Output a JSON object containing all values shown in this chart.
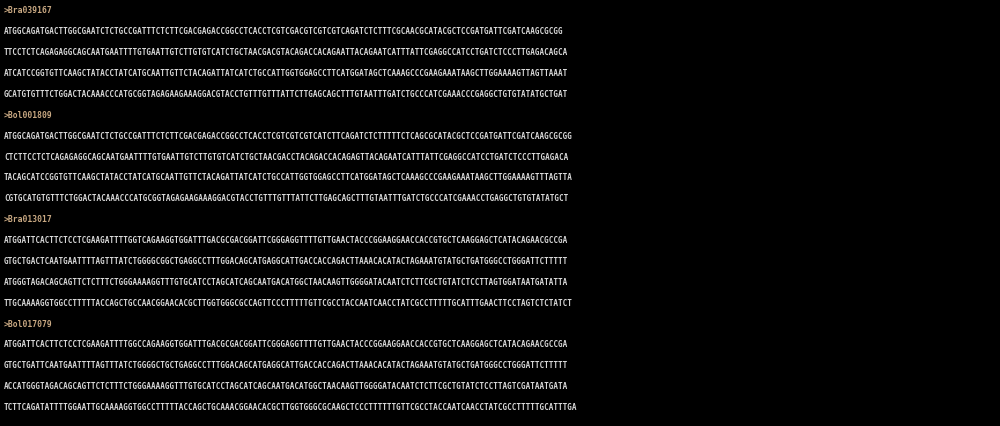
{
  "bg_color": "#000000",
  "header_color": "#c8a882",
  "seq_color": "#d8d8d8",
  "font_family": "monospace",
  "font_size": 5.5,
  "header_font_size": 5.8,
  "figsize": [
    10.0,
    4.26
  ],
  "dpi": 100,
  "sections": [
    {
      "header": ">Bra039167",
      "lines": [
        "ATGGCAGATGACTTGGCGAATCTCTGCCGATTTCTCTTCGACGAGACCGGCCTCACCTCGTCGACGTCGTCGTCAGATCTCTTTCGCAACGCATACGCTCCGATGATTCGATCAAGCGCGG",
        "TTCCTCTCAGAGAGGCAGCAATGAATTTTGTGAATTGTCTTGTGTCATCTGCTAACGACGTACAGACCACAGAATTACAGAATCATTTATTCGAGGCCATCCTGATCTCCCTTGAGACAGCA",
        "ATCATCCGGTGTTCAAGCTATACCTATCATGCAATTGTTCTACAGATTATCATCTGCCATTGGTGGAGCCTTCATGGATAGCTCAAAGCCCGAAGAAATAAGCTTGGAAAAGTTAGTTAAAT",
        "GCATGTGTTTCTGGACTACAAACCCATGCGGTAGAGAAGAAAGGACGTACCTGTTTGTTTATTCTTGAGCAGCTTTGTAATTTGATCTGCCCATCGAAACCCGAGGCTGTGTATATGCTGAT"
      ]
    },
    {
      "header": ">Bol001809",
      "lines": [
        "ATGGCAGATGACTTGGCGAATCTCTGCCGATTTCTCTTCGACGAGACCGGCCTCACCTCGTCGTCGTCATCTTCAGATCTCTTTTTCTCAGCGCATACGCTCCGATGATTCGATCAAGCGCGG",
        "CTCTTCCTCTCAGAGAGGCAGCAATGAATTTTGTGAATTGTCTTGTGTCATCTGCTAACGACCTACAGACCACAGAGTTACAGAATCATTTATTCGAGGCCATCCTGATCTCCCTTGAGACA",
        "TACAGCATCCGGTGTTCAAGCTATACCTATCATGCAATTGTTCTACAGATTATCATCTGCCATTGGTGGAGCCTTCATGGATAGCTCAAAGCCCGAAGAAATAAGCTTGGAAAAGTTTAGTTA",
        "CGTGCATGTGTTTCTGGACTACAAACCCATGCGGTAGAGAAGAAAGGACGTACCTGTTTGTTTATTCTTGAGCAGCTTTGTAATTTGATCTGCCCATCGAAACCTGAGGCTGTGTATATGCT"
      ]
    },
    {
      "header": ">Bra013017",
      "lines": [
        "ATGGATTCACTTCTCCTCGAAGATTTTGGTCAGAAGGTGGATTTGACGCGACGGATTCGGGAGGTTTTGTTGAACTACCCGGAAGGAACCACCGTGCTCAAGGAGCTCATACAGAACGCCGA",
        "GTGCTGACTCAATGAATTTTAGTTTATCTGGGGCGGCTGAGGCCTTTGGACAGCATGAGGCATTGACCACCAGACTTAAACACATACTAGAAATGTATGCTGATGGGCCTGGGATTCTTTTT",
        "ATGGGTAGACAGCAGTTCTCTTTCTGGGAAAAGGTTTGTGCATCCTAGCATCAGCAATGACATGGCTAACAAGTTGGGGATACAATCTCTTCGCTGTATCTCCTTAGTGGATAATGATATTA",
        "TTGCAAAAGGTGGCCTTTTTACCAGCTGCCAACGGAACACGCTTGGTGGGCGCCAGTTCCCTTTTTGTTCGCCTACCAATCAACCTATCGCCTTTTTGCATTTGAACTTCCTAGTCTCTATCT"
      ]
    },
    {
      "header": ">Bol017079",
      "lines": [
        "ATGGATTCACTTCTCCTCGAAGATTTTGGCCAGAAGGTGGATTTGACGCGACGGATTCGGGAGGTTTTGTTGAACTACCCGGAAGGAACCACCGTGCTCAAGGAGCTCATACAGAACGCCGA",
        "GTGCTGATTCAATGAATTTTAGTTTATCTGGGGCTGCTGAGGCCTTTGGACAGCATGAGGCATTGACCACCAGACTTAAACACATACTAGAAATGTATGCTGATGGGCCTGGGATTCTTTTT",
        "ACCATGGGTAGACAGCAGTTCTCTTTCTGGGAAAAGGTTTGTGCATCCTAGCATCAGCAATGACATGGCTAACAAGTTGGGGATACAATCTCTTCGCTGTATCTCCTTAGTCGATAATGATA",
        "TCTTCAGATATTTTGGAATTGCAAAAGGTGGCCTTTTTACCAGCTGCAAACGGAACACGCTTGGTGGGCGCAAGCTCCCTTTTTTGTTCGCCTACCAATCAACCTATCGCCTTTTTGCATTTGA"
      ]
    }
  ]
}
